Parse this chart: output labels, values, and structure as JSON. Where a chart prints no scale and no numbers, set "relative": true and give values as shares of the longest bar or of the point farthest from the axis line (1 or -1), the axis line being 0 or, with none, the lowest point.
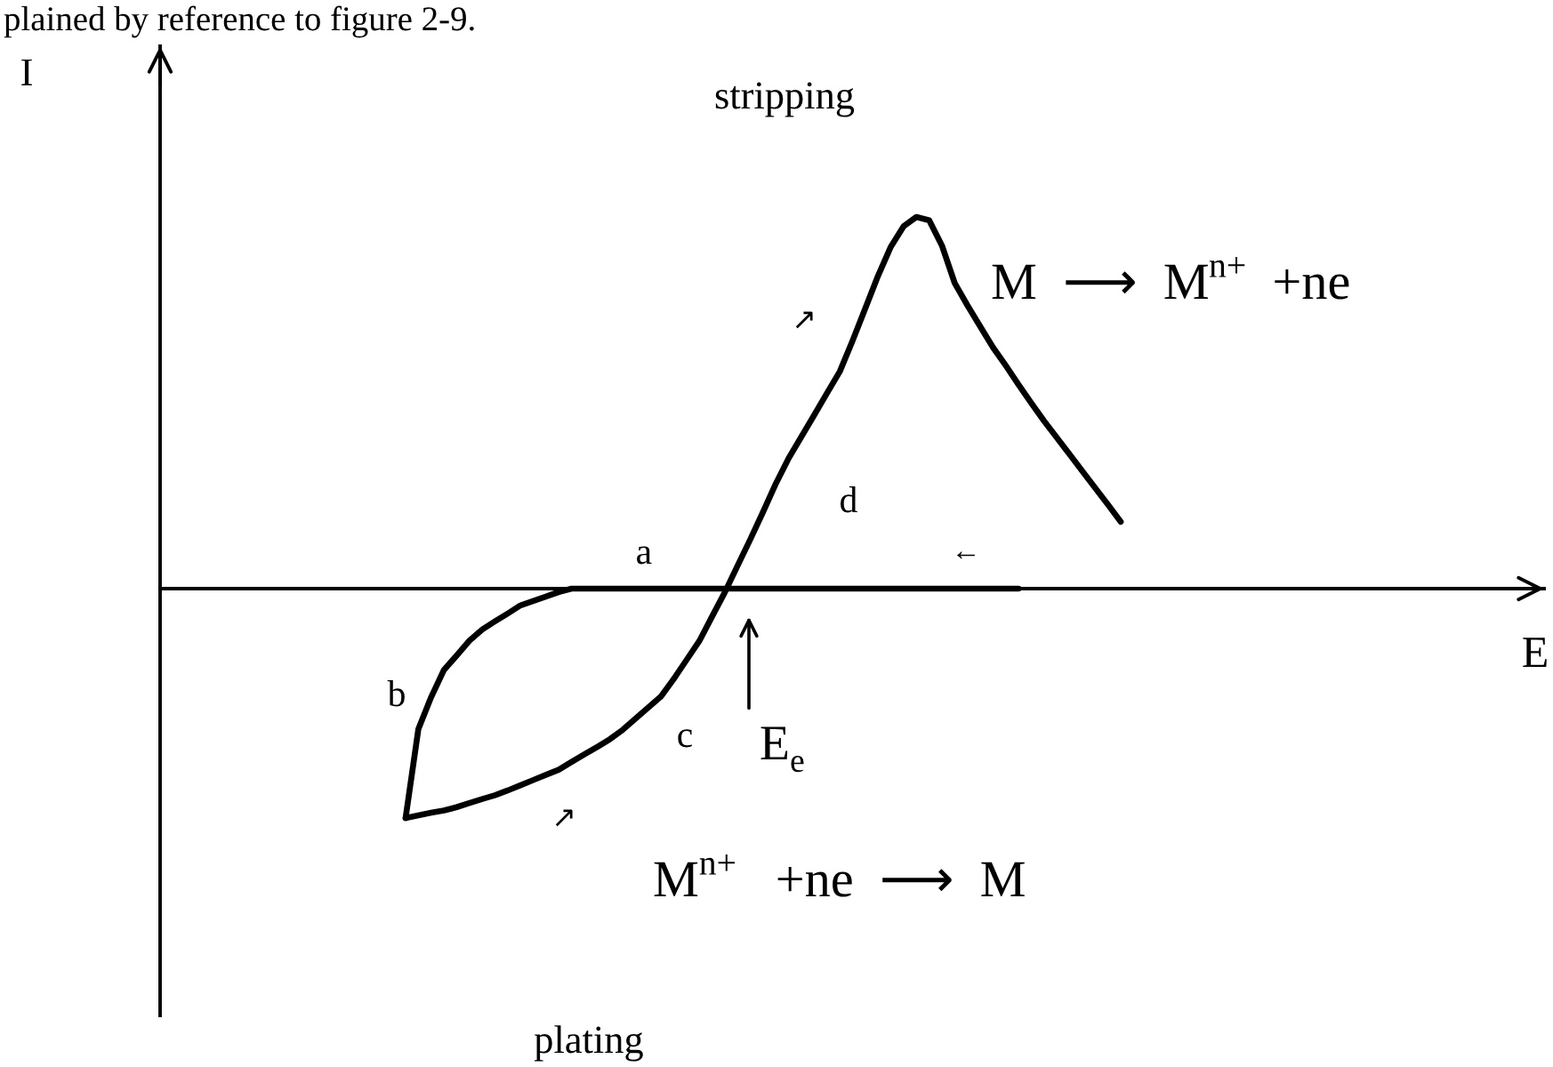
{
  "chart_data": {
    "type": "line",
    "relative": true,
    "line_style": "solid",
    "categories": [
      null,
      null,
      null,
      null,
      null,
      null,
      null,
      null,
      null,
      null,
      null,
      null,
      null,
      null,
      null,
      null,
      null,
      null,
      null,
      null,
      null,
      null,
      null,
      null,
      null,
      null,
      null,
      null,
      null,
      null,
      null,
      null,
      null,
      null,
      null,
      null,
      null,
      null,
      null,
      null,
      null,
      null,
      null,
      null,
      null,
      null,
      null,
      null,
      null,
      null,
      null,
      null,
      null,
      null,
      null,
      null,
      null
    ],
    "series": [
      {
        "color": "#000000",
        "values": [
          -0.617,
          -0.61,
          -0.603,
          -0.597,
          -0.588,
          -0.577,
          -0.566,
          -0.556,
          -0.543,
          -0.529,
          -0.515,
          -0.501,
          -0.487,
          -0.466,
          -0.446,
          -0.426,
          -0.405,
          -0.38,
          -0.35,
          -0.32,
          -0.29,
          -0.243,
          -0.192,
          -0.141,
          -0.075,
          -0.01,
          0.062,
          0.133,
          0.207,
          0.283,
          0.351,
          0.409,
          0.467,
          0.526,
          0.584,
          0.667,
          0.754,
          0.842,
          0.92,
          0.975,
          1.0,
          0.991,
          0.923,
          0.822,
          0.762,
          0.705,
          0.649,
          0.6,
          0.549,
          0.499,
          0.451,
          0.406,
          0.361,
          0.316,
          0.271,
          0.226,
          0.18
        ]
      },
      {
        "color": "#000000",
        "values": [
          -0.617,
          -0.378,
          -0.292,
          -0.219,
          -0.18,
          -0.14,
          -0.11,
          -0.088,
          -0.067,
          -0.045,
          -0.033,
          -0.021,
          -0.009,
          0,
          0,
          0,
          0,
          0,
          0,
          0,
          0,
          0,
          0,
          0,
          0,
          0,
          0,
          0,
          0,
          0,
          0,
          0,
          0,
          0,
          0,
          0,
          0,
          0,
          0,
          0,
          0,
          0,
          0,
          0,
          0,
          0,
          0,
          0,
          0,
          null,
          null,
          null,
          null,
          null,
          null,
          null,
          null
        ]
      }
    ],
    "annotations": [
      "plained by reference to figure 2-9.",
      "stripping",
      "M  ⟶  M$^{n+}$  +ne",
      "M$^{n+}$   +ne  ⟶  M",
      "plating",
      "a",
      "b",
      "c",
      "d",
      "↗",
      "←",
      "↗",
      "E$_{e}$",
      "I",
      "E"
    ]
  }
}
